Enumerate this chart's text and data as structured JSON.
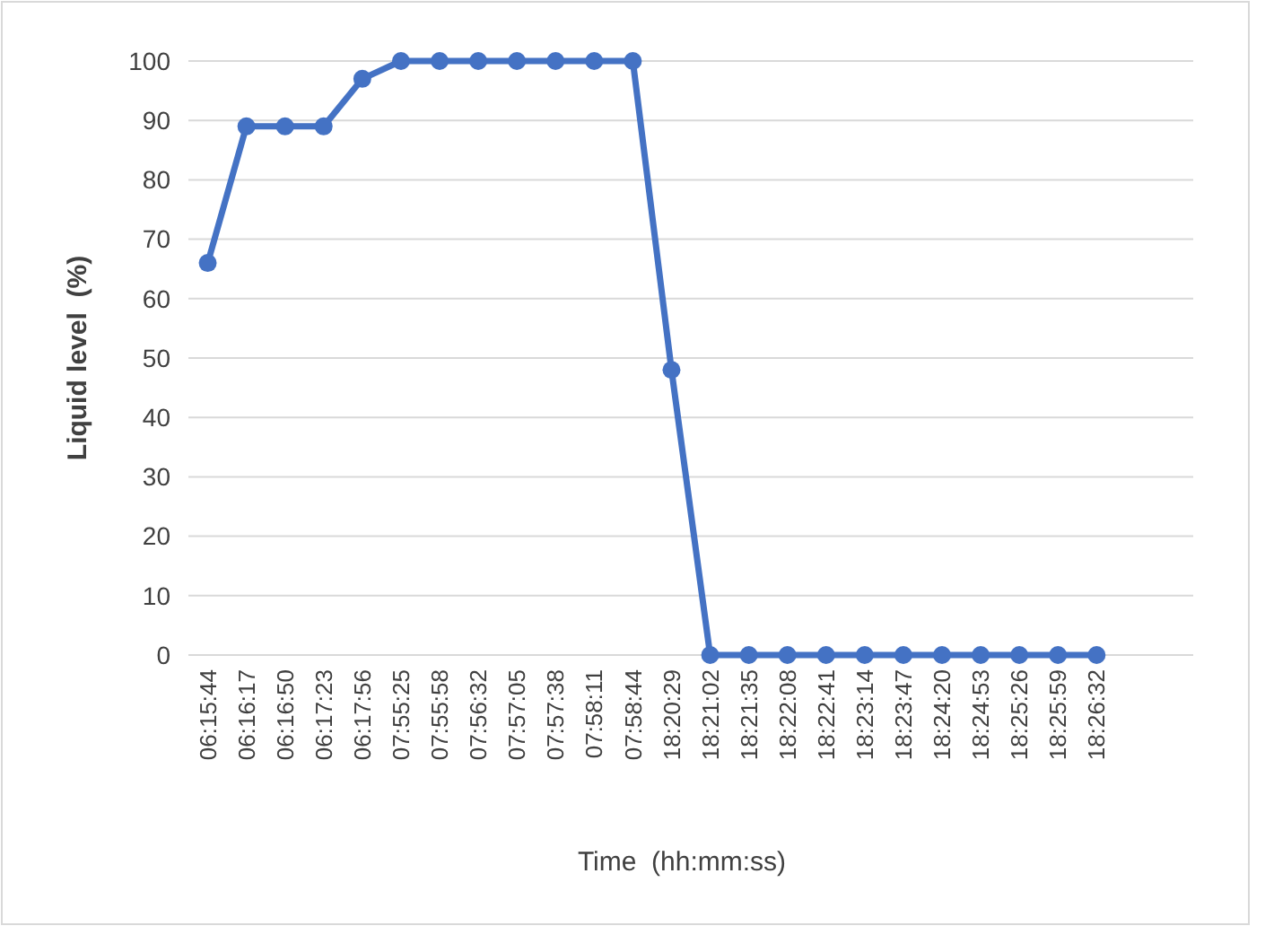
{
  "chart_data": {
    "type": "line",
    "xlabel": "Time  (hh:mm:ss)",
    "ylabel": "Liquid level  (%)",
    "categories": [
      "06:15:44",
      "06:16:17",
      "06:16:50",
      "06:17:23",
      "06:17:56",
      "07:55:25",
      "07:55:58",
      "07:56:32",
      "07:57:05",
      "07:57:38",
      "07:58:11",
      "07:58:44",
      "18:20:29",
      "18:21:02",
      "18:21:35",
      "18:22:08",
      "18:22:41",
      "18:23:14",
      "18:23:47",
      "18:24:20",
      "18:24:53",
      "18:25:26",
      "18:25:59",
      "18:26:32",
      null,
      null
    ],
    "series": [
      {
        "color": "#4472c4",
        "values": [
          66,
          89,
          89,
          89,
          97,
          100,
          100,
          100,
          100,
          100,
          100,
          100,
          48,
          0,
          0,
          0,
          0,
          0,
          0,
          0,
          0,
          0,
          0,
          0,
          null,
          null
        ]
      }
    ],
    "ylim": [
      0,
      100
    ],
    "yticks": [
      0,
      10,
      20,
      30,
      40,
      50,
      60,
      70,
      80,
      90,
      100
    ],
    "grid": "y",
    "marker": "circle",
    "line_style": "solid"
  }
}
